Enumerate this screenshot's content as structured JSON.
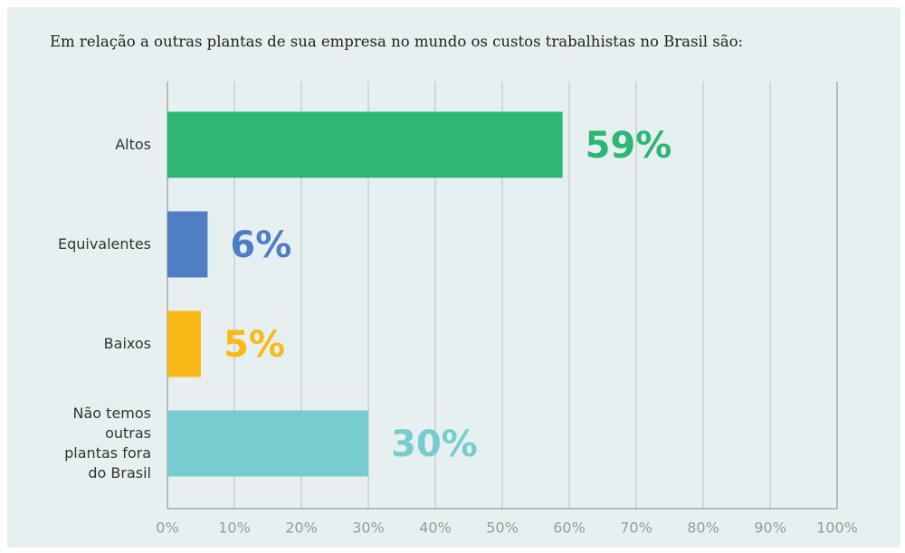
{
  "chart_data": {
    "type": "hbar",
    "title": "Em relação a outras plantas de sua empresa no mundo os custos trabalhistas no Brasil são:",
    "categories": [
      "Altos",
      "Equivalentes",
      "Baixos",
      "Não temos outras plantas fora do Brasil"
    ],
    "values": [
      59,
      6,
      5,
      30
    ],
    "value_labels": [
      "59%",
      "6%",
      "5%",
      "30%"
    ],
    "colors": [
      "#2db674",
      "#4f7ec4",
      "#fbb917",
      "#77ccd0"
    ],
    "xlim": [
      0,
      100
    ],
    "xticks": [
      {
        "value": 0,
        "label": "0%"
      },
      {
        "value": 10,
        "label": "10%"
      },
      {
        "value": 20,
        "label": "20%"
      },
      {
        "value": 30,
        "label": "30%"
      },
      {
        "value": 40,
        "label": "40%"
      },
      {
        "value": 50,
        "label": "50%"
      },
      {
        "value": 60,
        "label": "60%"
      },
      {
        "value": 70,
        "label": "70%"
      },
      {
        "value": 80,
        "label": "80%"
      },
      {
        "value": 90,
        "label": "90%"
      },
      {
        "value": 100,
        "label": "100%"
      }
    ],
    "grid": true
  }
}
